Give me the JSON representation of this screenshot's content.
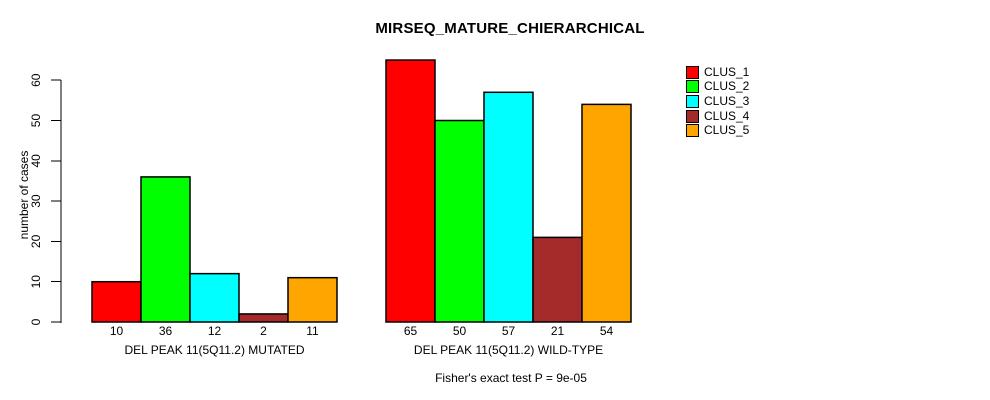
{
  "chart_data": {
    "type": "bar",
    "title": "MIRSEQ_MATURE_CHIERARCHICAL",
    "ylabel": "number of cases",
    "xlabel": "",
    "ylim": [
      0,
      60
    ],
    "yticks": [
      0,
      10,
      20,
      30,
      40,
      50,
      60
    ],
    "grid": false,
    "legend_position": "right",
    "values_shown_under_bars": true,
    "categories": [
      "DEL PEAK 11(5Q11.2) MUTATED",
      "DEL PEAK 11(5Q11.2) WILD-TYPE"
    ],
    "series": [
      {
        "name": "CLUS_1",
        "color": "#FF0000",
        "values": [
          10,
          65
        ]
      },
      {
        "name": "CLUS_2",
        "color": "#00FF00",
        "values": [
          36,
          50
        ]
      },
      {
        "name": "CLUS_3",
        "color": "#00FFFF",
        "values": [
          12,
          57
        ]
      },
      {
        "name": "CLUS_4",
        "color": "#A52A2A",
        "values": [
          2,
          21
        ]
      },
      {
        "name": "CLUS_5",
        "color": "#FFA500",
        "values": [
          11,
          54
        ]
      }
    ],
    "annotation": "Fisher's exact test P = 9e-05"
  }
}
